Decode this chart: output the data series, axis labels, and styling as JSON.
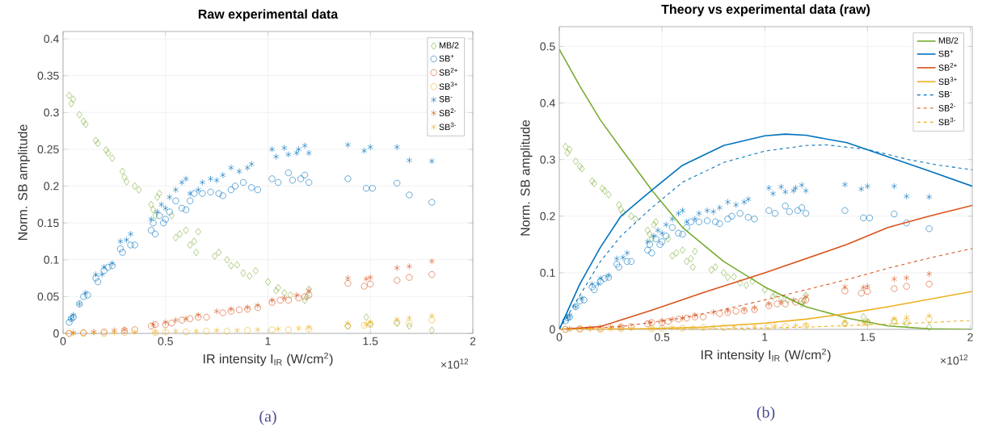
{
  "chart_data": [
    {
      "type": "scatter",
      "title": "Raw experimental data",
      "xlabel": "IR intensity I$_{IR}$ (W/cm$^{2}$)",
      "ylabel": "Norm. SB amplitude",
      "annotations": [
        "×10$^{12}$",
        "(a)"
      ],
      "xlim": [
        0,
        2
      ],
      "ylim": [
        0,
        0.41
      ],
      "xticks": [
        0,
        0.5,
        1,
        1.5,
        2
      ],
      "yticks": [
        0,
        0.05,
        0.1,
        0.15,
        0.2,
        0.25,
        0.3,
        0.35,
        0.4
      ],
      "grid": true,
      "legend": "top right",
      "series": [
        {
          "name": "MB/2",
          "color": "#77ac30",
          "marker": "diamond",
          "x": [
            0.03,
            0.05,
            0.04,
            0.08,
            0.1,
            0.11,
            0.16,
            0.17,
            0.21,
            0.22,
            0.24,
            0.29,
            0.3,
            0.31,
            0.35,
            0.37,
            0.43,
            0.44,
            0.45,
            0.46,
            0.47,
            0.53,
            0.55,
            0.57,
            0.6,
            0.62,
            0.64,
            0.66,
            0.65,
            0.74,
            0.76,
            0.8,
            0.82,
            0.85,
            0.88,
            0.91,
            0.94,
            1.0,
            1.04,
            1.05,
            1.08,
            1.11,
            1.18,
            1.19,
            1.2,
            1.39,
            1.48,
            1.5,
            1.63,
            1.69,
            1.8
          ],
          "values": [
            0.323,
            0.318,
            0.312,
            0.297,
            0.288,
            0.284,
            0.262,
            0.258,
            0.249,
            0.245,
            0.238,
            0.22,
            0.212,
            0.206,
            0.2,
            0.195,
            0.175,
            0.168,
            0.16,
            0.185,
            0.19,
            0.16,
            0.13,
            0.135,
            0.14,
            0.12,
            0.125,
            0.138,
            0.11,
            0.105,
            0.11,
            0.1,
            0.092,
            0.093,
            0.082,
            0.078,
            0.085,
            0.07,
            0.058,
            0.062,
            0.055,
            0.052,
            0.045,
            0.05,
            0.06,
            0.01,
            0.022,
            0.013,
            0.014,
            0.01,
            0.004
          ]
        },
        {
          "name": "SB$^{+}$",
          "color": "#0072bd",
          "marker": "circle",
          "x": [
            0.03,
            0.04,
            0.05,
            0.08,
            0.1,
            0.12,
            0.16,
            0.17,
            0.2,
            0.22,
            0.24,
            0.28,
            0.29,
            0.33,
            0.35,
            0.43,
            0.44,
            0.45,
            0.47,
            0.49,
            0.5,
            0.52,
            0.55,
            0.58,
            0.6,
            0.62,
            0.64,
            0.68,
            0.72,
            0.76,
            0.78,
            0.82,
            0.84,
            0.88,
            0.92,
            0.95,
            1.02,
            1.05,
            1.1,
            1.12,
            1.16,
            1.18,
            1.2,
            1.39,
            1.48,
            1.51,
            1.63,
            1.69,
            1.8
          ],
          "values": [
            0.015,
            0.02,
            0.022,
            0.04,
            0.05,
            0.052,
            0.075,
            0.07,
            0.085,
            0.09,
            0.092,
            0.115,
            0.11,
            0.12,
            0.12,
            0.14,
            0.15,
            0.135,
            0.16,
            0.15,
            0.155,
            0.165,
            0.18,
            0.17,
            0.168,
            0.18,
            0.19,
            0.19,
            0.192,
            0.19,
            0.187,
            0.195,
            0.2,
            0.205,
            0.198,
            0.195,
            0.21,
            0.205,
            0.218,
            0.208,
            0.21,
            0.215,
            0.205,
            0.21,
            0.197,
            0.197,
            0.204,
            0.188,
            0.178
          ]
        },
        {
          "name": "SB$^{2+}$",
          "color": "#d95319",
          "marker": "circle",
          "x": [
            0.03,
            0.1,
            0.2,
            0.3,
            0.35,
            0.43,
            0.45,
            0.5,
            0.53,
            0.58,
            0.62,
            0.66,
            0.7,
            0.78,
            0.82,
            0.86,
            0.9,
            0.95,
            1.02,
            1.06,
            1.1,
            1.15,
            1.18,
            1.2,
            1.39,
            1.47,
            1.5,
            1.63,
            1.69,
            1.8
          ],
          "values": [
            0,
            0.001,
            0.002,
            0.004,
            0.005,
            0.01,
            0.012,
            0.012,
            0.014,
            0.018,
            0.02,
            0.022,
            0.022,
            0.028,
            0.03,
            0.032,
            0.033,
            0.035,
            0.042,
            0.045,
            0.045,
            0.048,
            0.05,
            0.052,
            0.068,
            0.064,
            0.067,
            0.072,
            0.076,
            0.08
          ]
        },
        {
          "name": "SB$^{3+}$",
          "color": "#edb120",
          "marker": "circle",
          "x": [
            0.03,
            0.1,
            0.2,
            0.3,
            0.45,
            0.5,
            0.6,
            0.7,
            0.8,
            0.9,
            1.02,
            1.1,
            1.2,
            1.39,
            1.47,
            1.5,
            1.63,
            1.69,
            1.8
          ],
          "values": [
            0,
            0,
            0,
            0.001,
            0.001,
            0.002,
            0.002,
            0.003,
            0.003,
            0.004,
            0.005,
            0.005,
            0.006,
            0.01,
            0.011,
            0.012,
            0.015,
            0.014,
            0.018
          ]
        },
        {
          "name": "SB$^{-}$",
          "color": "#0072bd",
          "marker": "cross",
          "x": [
            0.04,
            0.05,
            0.08,
            0.11,
            0.16,
            0.19,
            0.2,
            0.24,
            0.28,
            0.31,
            0.33,
            0.43,
            0.46,
            0.48,
            0.5,
            0.52,
            0.55,
            0.58,
            0.6,
            0.62,
            0.66,
            0.68,
            0.72,
            0.75,
            0.78,
            0.82,
            0.86,
            0.9,
            0.92,
            1.02,
            1.04,
            1.08,
            1.1,
            1.14,
            1.15,
            1.18,
            1.2,
            1.39,
            1.47,
            1.5,
            1.63,
            1.69,
            1.8
          ],
          "values": [
            0.02,
            0.025,
            0.04,
            0.055,
            0.08,
            0.08,
            0.09,
            0.095,
            0.125,
            0.127,
            0.135,
            0.155,
            0.165,
            0.175,
            0.17,
            0.185,
            0.195,
            0.205,
            0.21,
            0.19,
            0.195,
            0.205,
            0.21,
            0.208,
            0.215,
            0.225,
            0.22,
            0.225,
            0.23,
            0.25,
            0.24,
            0.252,
            0.243,
            0.245,
            0.25,
            0.255,
            0.245,
            0.256,
            0.248,
            0.253,
            0.253,
            0.235,
            0.234
          ]
        },
        {
          "name": "SB$^{2-}$",
          "color": "#d95319",
          "marker": "cross",
          "x": [
            0.05,
            0.15,
            0.25,
            0.3,
            0.44,
            0.5,
            0.55,
            0.6,
            0.66,
            0.75,
            0.82,
            0.9,
            0.95,
            1.02,
            1.08,
            1.14,
            1.2,
            1.39,
            1.48,
            1.5,
            1.63,
            1.69,
            1.8
          ],
          "values": [
            0.001,
            0.002,
            0.004,
            0.005,
            0.012,
            0.015,
            0.018,
            0.02,
            0.025,
            0.03,
            0.033,
            0.035,
            0.038,
            0.045,
            0.048,
            0.052,
            0.058,
            0.075,
            0.074,
            0.076,
            0.089,
            0.091,
            0.098
          ]
        },
        {
          "name": "SB$^{3-}$",
          "color": "#edb120",
          "marker": "cross",
          "x": [
            0.05,
            0.15,
            0.25,
            0.35,
            0.45,
            0.55,
            0.65,
            0.75,
            0.85,
            0.95,
            1.05,
            1.15,
            1.2,
            1.39,
            1.48,
            1.5,
            1.63,
            1.69,
            1.8
          ],
          "values": [
            0,
            0.001,
            0.001,
            0.002,
            0.002,
            0.003,
            0.003,
            0.004,
            0.004,
            0.005,
            0.006,
            0.007,
            0.008,
            0.014,
            0.012,
            0.015,
            0.019,
            0.021,
            0.024
          ]
        }
      ]
    },
    {
      "type": "scatter",
      "title": "Theory vs experimental data (raw)",
      "xlabel": "IR intensity I$_{IR}$ (W/cm$^{2}$)",
      "ylabel": "Norm. SB amplitude",
      "annotations": [
        "×10$^{12}$",
        "(b)"
      ],
      "xlim": [
        0,
        2.01
      ],
      "ylim": [
        0,
        0.535
      ],
      "xticks": [
        0,
        0.5,
        1,
        1.5,
        2
      ],
      "yticks": [
        0,
        0.1,
        0.2,
        0.3,
        0.4,
        0.5
      ],
      "grid": true,
      "legend": "top right",
      "series": [
        {
          "color": "#77ac30",
          "marker": "diamond",
          "x": [
            0.03,
            0.05,
            0.04,
            0.08,
            0.1,
            0.11,
            0.16,
            0.17,
            0.21,
            0.22,
            0.24,
            0.29,
            0.3,
            0.31,
            0.35,
            0.37,
            0.43,
            0.44,
            0.45,
            0.46,
            0.47,
            0.53,
            0.55,
            0.57,
            0.6,
            0.62,
            0.64,
            0.66,
            0.65,
            0.74,
            0.76,
            0.8,
            0.82,
            0.85,
            0.88,
            0.91,
            0.94,
            1.0,
            1.04,
            1.05,
            1.08,
            1.11,
            1.18,
            1.19,
            1.2,
            1.39,
            1.48,
            1.5,
            1.63,
            1.69,
            1.8
          ],
          "values": [
            0.323,
            0.318,
            0.312,
            0.297,
            0.288,
            0.284,
            0.262,
            0.258,
            0.249,
            0.245,
            0.238,
            0.22,
            0.212,
            0.206,
            0.2,
            0.195,
            0.175,
            0.168,
            0.16,
            0.185,
            0.19,
            0.16,
            0.13,
            0.135,
            0.14,
            0.12,
            0.125,
            0.138,
            0.11,
            0.105,
            0.11,
            0.1,
            0.092,
            0.093,
            0.082,
            0.078,
            0.085,
            0.07,
            0.058,
            0.062,
            0.055,
            0.052,
            0.045,
            0.05,
            0.06,
            0.01,
            0.022,
            0.013,
            0.014,
            0.01,
            0.004
          ]
        },
        {
          "color": "#0072bd",
          "marker": "circle",
          "x": [
            0.03,
            0.04,
            0.05,
            0.08,
            0.1,
            0.12,
            0.16,
            0.17,
            0.2,
            0.22,
            0.24,
            0.28,
            0.29,
            0.33,
            0.35,
            0.43,
            0.44,
            0.45,
            0.47,
            0.49,
            0.5,
            0.52,
            0.55,
            0.58,
            0.6,
            0.62,
            0.64,
            0.68,
            0.72,
            0.76,
            0.78,
            0.82,
            0.84,
            0.88,
            0.92,
            0.95,
            1.02,
            1.05,
            1.1,
            1.12,
            1.16,
            1.18,
            1.2,
            1.39,
            1.48,
            1.51,
            1.63,
            1.69,
            1.8
          ],
          "values": [
            0.015,
            0.02,
            0.022,
            0.04,
            0.05,
            0.052,
            0.075,
            0.07,
            0.085,
            0.09,
            0.092,
            0.115,
            0.11,
            0.12,
            0.12,
            0.14,
            0.15,
            0.135,
            0.16,
            0.15,
            0.155,
            0.165,
            0.18,
            0.17,
            0.168,
            0.18,
            0.19,
            0.19,
            0.192,
            0.19,
            0.187,
            0.195,
            0.2,
            0.205,
            0.198,
            0.195,
            0.21,
            0.205,
            0.218,
            0.208,
            0.21,
            0.215,
            0.205,
            0.21,
            0.197,
            0.197,
            0.204,
            0.188,
            0.178
          ]
        },
        {
          "color": "#d95319",
          "marker": "circle",
          "x": [
            0.03,
            0.1,
            0.2,
            0.3,
            0.35,
            0.43,
            0.45,
            0.5,
            0.53,
            0.58,
            0.62,
            0.66,
            0.7,
            0.78,
            0.82,
            0.86,
            0.9,
            0.95,
            1.02,
            1.06,
            1.1,
            1.15,
            1.18,
            1.2,
            1.39,
            1.47,
            1.5,
            1.63,
            1.69,
            1.8
          ],
          "values": [
            0,
            0.001,
            0.002,
            0.004,
            0.005,
            0.01,
            0.012,
            0.012,
            0.014,
            0.018,
            0.02,
            0.022,
            0.022,
            0.028,
            0.03,
            0.032,
            0.033,
            0.035,
            0.042,
            0.045,
            0.045,
            0.048,
            0.05,
            0.052,
            0.068,
            0.064,
            0.067,
            0.072,
            0.076,
            0.08
          ]
        },
        {
          "color": "#edb120",
          "marker": "circle",
          "x": [
            0.03,
            0.1,
            0.2,
            0.3,
            0.45,
            0.5,
            0.6,
            0.7,
            0.8,
            0.9,
            1.02,
            1.1,
            1.2,
            1.39,
            1.47,
            1.5,
            1.63,
            1.69,
            1.8
          ],
          "values": [
            0,
            0,
            0,
            0.001,
            0.001,
            0.002,
            0.002,
            0.003,
            0.003,
            0.004,
            0.005,
            0.005,
            0.006,
            0.01,
            0.011,
            0.012,
            0.015,
            0.014,
            0.018
          ]
        },
        {
          "color": "#0072bd",
          "marker": "cross",
          "x": [
            0.04,
            0.05,
            0.08,
            0.11,
            0.16,
            0.19,
            0.2,
            0.24,
            0.28,
            0.31,
            0.33,
            0.43,
            0.46,
            0.48,
            0.5,
            0.52,
            0.55,
            0.58,
            0.6,
            0.62,
            0.66,
            0.68,
            0.72,
            0.75,
            0.78,
            0.82,
            0.86,
            0.9,
            0.92,
            1.02,
            1.04,
            1.08,
            1.1,
            1.14,
            1.15,
            1.18,
            1.2,
            1.39,
            1.47,
            1.5,
            1.63,
            1.69,
            1.8
          ],
          "values": [
            0.02,
            0.025,
            0.04,
            0.055,
            0.08,
            0.08,
            0.09,
            0.095,
            0.125,
            0.127,
            0.135,
            0.155,
            0.165,
            0.175,
            0.17,
            0.185,
            0.195,
            0.205,
            0.21,
            0.19,
            0.195,
            0.205,
            0.21,
            0.208,
            0.215,
            0.225,
            0.22,
            0.225,
            0.23,
            0.25,
            0.24,
            0.252,
            0.243,
            0.245,
            0.25,
            0.255,
            0.245,
            0.256,
            0.248,
            0.253,
            0.253,
            0.235,
            0.234
          ]
        },
        {
          "color": "#d95319",
          "marker": "cross",
          "x": [
            0.05,
            0.15,
            0.25,
            0.3,
            0.44,
            0.5,
            0.55,
            0.6,
            0.66,
            0.75,
            0.82,
            0.9,
            0.95,
            1.02,
            1.08,
            1.14,
            1.2,
            1.39,
            1.48,
            1.5,
            1.63,
            1.69,
            1.8
          ],
          "values": [
            0.001,
            0.002,
            0.004,
            0.005,
            0.012,
            0.015,
            0.018,
            0.02,
            0.025,
            0.03,
            0.033,
            0.035,
            0.038,
            0.045,
            0.048,
            0.052,
            0.058,
            0.075,
            0.074,
            0.076,
            0.089,
            0.091,
            0.098
          ]
        },
        {
          "color": "#edb120",
          "marker": "cross",
          "x": [
            0.05,
            0.15,
            0.25,
            0.35,
            0.45,
            0.55,
            0.65,
            0.75,
            0.85,
            0.95,
            1.05,
            1.15,
            1.2,
            1.39,
            1.48,
            1.5,
            1.63,
            1.69,
            1.8
          ],
          "values": [
            0,
            0.001,
            0.001,
            0.002,
            0.002,
            0.003,
            0.003,
            0.004,
            0.004,
            0.005,
            0.006,
            0.007,
            0.008,
            0.014,
            0.012,
            0.015,
            0.019,
            0.021,
            0.024
          ]
        },
        {
          "name": "MB/2",
          "type": "line",
          "line_style": "solid",
          "color": "#77ac30",
          "x": [
            0,
            0.1,
            0.2,
            0.3,
            0.45,
            0.6,
            0.8,
            1.0,
            1.2,
            1.4,
            1.6,
            1.8,
            2.0
          ],
          "values": [
            0.495,
            0.43,
            0.37,
            0.32,
            0.246,
            0.18,
            0.12,
            0.075,
            0.04,
            0.02,
            0.006,
            0.001,
            0
          ]
        },
        {
          "name": "SB$^{+}$",
          "type": "line",
          "line_style": "solid",
          "color": "#0072bd",
          "x": [
            0,
            0.1,
            0.2,
            0.3,
            0.45,
            0.6,
            0.8,
            1.0,
            1.1,
            1.2,
            1.4,
            1.6,
            1.8,
            2.01
          ],
          "values": [
            0,
            0.08,
            0.145,
            0.2,
            0.246,
            0.29,
            0.325,
            0.342,
            0.345,
            0.343,
            0.33,
            0.305,
            0.28,
            0.253
          ]
        },
        {
          "name": "SB$^{2+}$",
          "type": "line",
          "line_style": "solid",
          "color": "#d95319",
          "x": [
            0,
            0.2,
            0.45,
            0.7,
            1.0,
            1.2,
            1.4,
            1.6,
            1.8,
            2.01
          ],
          "values": [
            0,
            0.005,
            0.034,
            0.065,
            0.1,
            0.125,
            0.15,
            0.18,
            0.2,
            0.219
          ]
        },
        {
          "name": "SB$^{3+}$",
          "type": "line",
          "line_style": "solid",
          "color": "#edb120",
          "x": [
            0,
            0.4,
            0.7,
            1.0,
            1.2,
            1.4,
            1.6,
            1.8,
            2.01
          ],
          "values": [
            0,
            0.001,
            0.004,
            0.011,
            0.018,
            0.028,
            0.04,
            0.053,
            0.067
          ]
        },
        {
          "name": "SB$^{-}$",
          "type": "line",
          "line_style": "dashed",
          "color": "#0072bd",
          "x": [
            0,
            0.1,
            0.2,
            0.3,
            0.45,
            0.6,
            0.8,
            1.0,
            1.2,
            1.3,
            1.5,
            1.7,
            1.85,
            2.01
          ],
          "values": [
            0,
            0.06,
            0.12,
            0.165,
            0.215,
            0.26,
            0.295,
            0.315,
            0.325,
            0.326,
            0.318,
            0.3,
            0.29,
            0.282
          ]
        },
        {
          "name": "SB$^{2-}$",
          "type": "line",
          "line_style": "dashed",
          "color": "#d95319",
          "x": [
            0,
            0.3,
            0.6,
            0.8,
            1.0,
            1.2,
            1.4,
            1.6,
            1.8,
            2.01
          ],
          "values": [
            0,
            0.005,
            0.02,
            0.035,
            0.052,
            0.07,
            0.088,
            0.108,
            0.126,
            0.143
          ]
        },
        {
          "name": "SB$^{3-}$",
          "type": "line",
          "line_style": "dashed",
          "color": "#edb120",
          "x": [
            0,
            0.8,
            1.2,
            1.5,
            1.8,
            2.01
          ],
          "values": [
            0,
            0.001,
            0.004,
            0.008,
            0.012,
            0.016
          ]
        }
      ]
    }
  ]
}
